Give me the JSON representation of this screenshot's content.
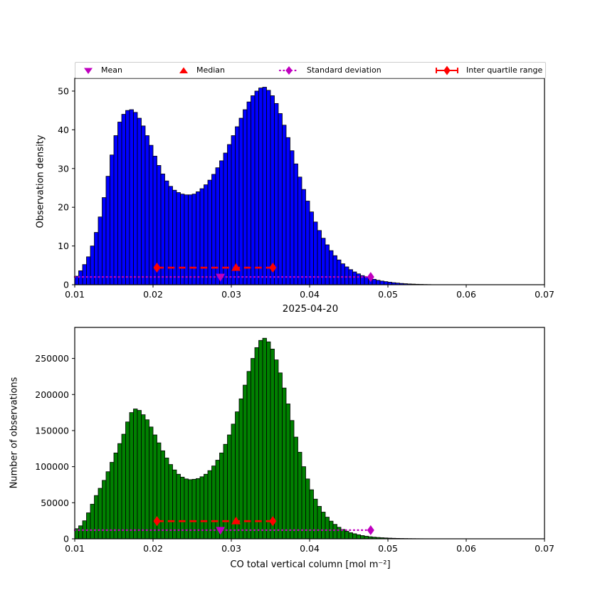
{
  "colors": {
    "blue": "#0000ff",
    "green": "#008000",
    "red": "#ff0000",
    "magenta": "#bf00bf",
    "axis": "#000000",
    "legend_border": "#cccccc"
  },
  "legend": {
    "items": [
      {
        "label": "Mean",
        "marker": "triangle-down-icon",
        "color_key": "magenta"
      },
      {
        "label": "Median",
        "marker": "triangle-up-icon",
        "color_key": "red"
      },
      {
        "label": "Standard deviation",
        "marker": "dotted-line-diamond-icon",
        "color_key": "magenta"
      },
      {
        "label": "Inter quartile range",
        "marker": "errorbar-diamond-icon",
        "color_key": "red"
      }
    ]
  },
  "chart_data": [
    {
      "type": "bar",
      "subtype": "histogram",
      "title": "",
      "xlabel": "",
      "ylabel": "Observation density",
      "xlim": [
        0.01,
        0.07
      ],
      "ylim": [
        0,
        53.3
      ],
      "grid": false,
      "x_tick_values": [
        0.01,
        0.02,
        0.03,
        0.04,
        0.05,
        0.06,
        0.07
      ],
      "x_tick_labels": [
        "0.01",
        "0.02",
        "0.03",
        "0.04",
        "0.05",
        "0.06",
        "0.07"
      ],
      "y_tick_values": [
        0,
        10,
        20,
        30,
        40,
        50
      ],
      "y_tick_labels": [
        "0",
        "10",
        "20",
        "30",
        "40",
        "50"
      ],
      "bin_start": 0.01,
      "bin_width": 0.0005,
      "bar_color_key": "blue",
      "values": [
        2.2,
        3.6,
        5.2,
        7.2,
        10.0,
        13.5,
        17.5,
        22.5,
        28.0,
        33.5,
        38.5,
        42.0,
        44.0,
        45.0,
        45.2,
        44.5,
        43.0,
        41.0,
        38.5,
        36.0,
        33.2,
        30.8,
        28.6,
        26.8,
        25.4,
        24.4,
        23.8,
        23.4,
        23.2,
        23.2,
        23.4,
        24.0,
        24.8,
        25.8,
        27.0,
        28.5,
        30.2,
        32.0,
        34.0,
        36.2,
        38.5,
        40.8,
        43.0,
        45.2,
        47.2,
        48.8,
        50.0,
        50.8,
        51.0,
        50.2,
        48.8,
        46.8,
        44.2,
        41.2,
        38.0,
        34.6,
        31.2,
        27.8,
        24.6,
        21.6,
        18.8,
        16.2,
        14.0,
        12.0,
        10.3,
        8.8,
        7.5,
        6.4,
        5.4,
        4.6,
        3.9,
        3.3,
        2.8,
        2.35,
        2.0,
        1.65,
        1.4,
        1.15,
        0.95,
        0.8,
        0.65,
        0.52,
        0.42,
        0.33,
        0.26,
        0.2,
        0.16,
        0.12,
        0.09,
        0.06,
        0.04
      ],
      "stats": {
        "mean": 0.0286,
        "std": 0.0192,
        "median": 0.0306,
        "q1": 0.0205,
        "q3": 0.0353,
        "mean_std_line_y": 2.0,
        "iqr_line_y": 4.4
      }
    },
    {
      "type": "bar",
      "subtype": "histogram",
      "title": "2025-04-20",
      "xlabel": "CO total vertical column [mol m⁻²]",
      "ylabel": "Number of observations",
      "xlim": [
        0.01,
        0.07
      ],
      "ylim": [
        0,
        293000
      ],
      "grid": false,
      "x_tick_values": [
        0.01,
        0.02,
        0.03,
        0.04,
        0.05,
        0.06,
        0.07
      ],
      "x_tick_labels": [
        "0.01",
        "0.02",
        "0.03",
        "0.04",
        "0.05",
        "0.06",
        "0.07"
      ],
      "y_tick_values": [
        0,
        50000,
        100000,
        150000,
        200000,
        250000
      ],
      "y_tick_labels": [
        "0",
        "50000",
        "100000",
        "150000",
        "200000",
        "250000"
      ],
      "bin_start": 0.01,
      "bin_width": 0.0005,
      "bar_color_key": "green",
      "values": [
        14000,
        18000,
        25000,
        36000,
        48000,
        60000,
        70000,
        81000,
        93000,
        106000,
        119000,
        132000,
        145000,
        162000,
        175000,
        180000,
        178000,
        172000,
        165000,
        155000,
        144000,
        133000,
        122000,
        112000,
        103000,
        95500,
        89500,
        85500,
        83000,
        82000,
        82500,
        83500,
        86000,
        89500,
        94500,
        101000,
        109000,
        119000,
        131000,
        144000,
        159000,
        176000,
        194000,
        213000,
        232000,
        250000,
        265000,
        275000,
        278000,
        273000,
        263000,
        248000,
        230000,
        209000,
        187000,
        164000,
        141000,
        120000,
        100000,
        83000,
        68000,
        55000,
        45000,
        37000,
        30000,
        24500,
        20000,
        16000,
        13000,
        10500,
        8500,
        7000,
        5600,
        4500,
        3600,
        2900,
        2300,
        1850,
        1500,
        1200,
        950,
        750,
        600,
        470,
        370,
        290,
        230,
        180,
        140,
        105,
        80
      ],
      "stats": {
        "mean": 0.0286,
        "std": 0.0192,
        "median": 0.0306,
        "q1": 0.0205,
        "q3": 0.0353,
        "mean_std_line_y": 12000,
        "iqr_line_y": 24500
      }
    }
  ]
}
